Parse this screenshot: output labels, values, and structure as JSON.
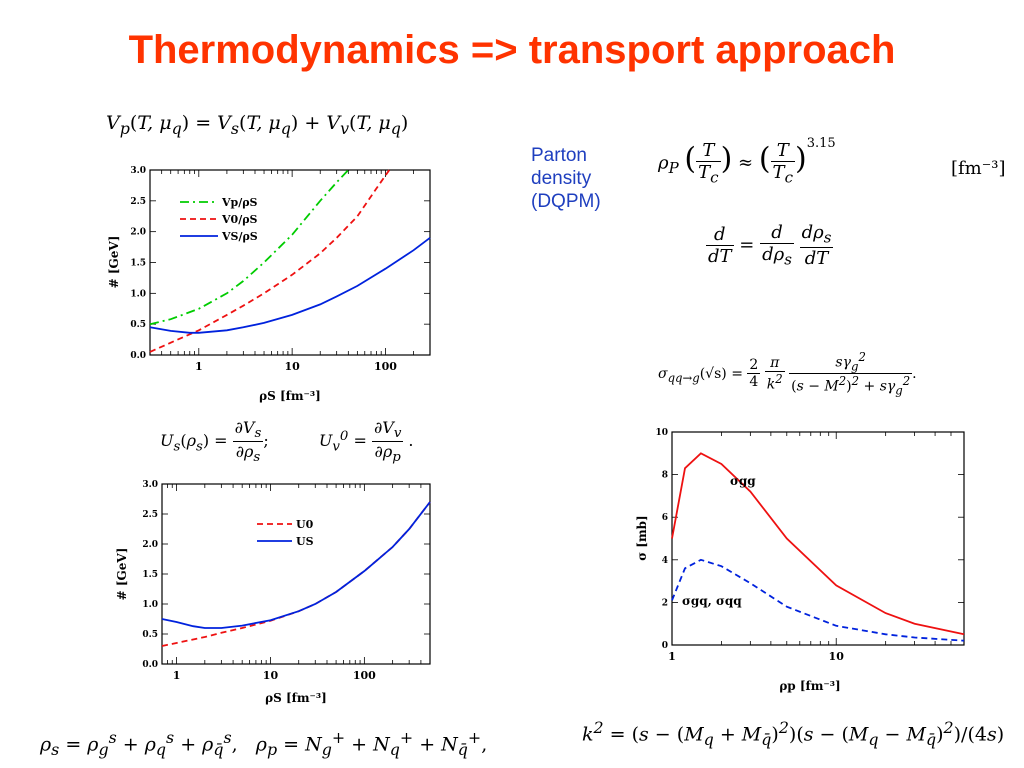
{
  "title": "Thermodynamics => transport approach",
  "parton_note": [
    "Parton",
    "density",
    "(DQPM)"
  ],
  "equations": {
    "potential_sum": "Vp(T, μq) = Vs(T, μq) + Vv(T, μq)",
    "density_power": "ρP (T/Tc) ≈ (T/Tc)^3.15",
    "density_unit": "[fm⁻³]",
    "chain_rule": "d/dT = d/dρs · dρs/dT",
    "cross_section": "σqq→g(√s) = (2/4)(π/k²) sγg² / ((s − M²)² + sγg²)",
    "potential_derivatives": "Us(ρs) = ∂Vs/∂ρs;   Uv0 = ∂Vv/∂ρp",
    "density_defs": "ρs = ρgs + ρqs + ρq̄s,   ρp = Ng+ + Nq+ + Nq̄+,",
    "k_squared": "k² = (s − (Mq + Mq̄)²)(s − (Mq − Mq̄)²)/(4s)"
  },
  "chart_data": [
    {
      "type": "line",
      "xlabel": "ρS [fm⁻³]",
      "ylabel": "# [GeV]",
      "xscale": "log",
      "xlim": [
        0.3,
        300
      ],
      "ylim": [
        0.0,
        3.0
      ],
      "x_ticks": [
        "1",
        "10",
        "100"
      ],
      "y_ticks": [
        "0.0",
        "0.5",
        "1.0",
        "1.5",
        "2.0",
        "2.5",
        "3.0"
      ],
      "legend": "top-left",
      "series": [
        {
          "name": "Vp/ρS",
          "color": "#00cc00",
          "dash": "dashdot",
          "x": [
            0.3,
            0.5,
            1,
            2,
            3,
            5,
            10,
            20,
            30,
            40
          ],
          "y": [
            0.5,
            0.58,
            0.75,
            1.0,
            1.2,
            1.5,
            1.95,
            2.5,
            2.8,
            3.0
          ]
        },
        {
          "name": "V0/ρS",
          "color": "#ee1111",
          "dash": "dash",
          "x": [
            0.3,
            0.5,
            1,
            2,
            3,
            5,
            10,
            20,
            30,
            50,
            80,
            110
          ],
          "y": [
            0.05,
            0.2,
            0.4,
            0.65,
            0.8,
            1.0,
            1.3,
            1.65,
            1.9,
            2.25,
            2.7,
            3.0
          ]
        },
        {
          "name": "VS/ρS",
          "color": "#0022dd",
          "dash": "solid",
          "x": [
            0.3,
            0.5,
            0.8,
            1,
            2,
            3,
            5,
            10,
            20,
            30,
            50,
            100,
            200,
            300
          ],
          "y": [
            0.45,
            0.39,
            0.36,
            0.36,
            0.4,
            0.45,
            0.52,
            0.65,
            0.82,
            0.95,
            1.12,
            1.4,
            1.7,
            1.9
          ]
        }
      ]
    },
    {
      "type": "line",
      "xlabel": "ρS [fm⁻³]",
      "ylabel": "# [GeV]",
      "xscale": "log",
      "xlim": [
        0.7,
        500
      ],
      "ylim": [
        0.0,
        3.0
      ],
      "x_ticks": [
        "1",
        "10",
        "100"
      ],
      "y_ticks": [
        "0.0",
        "0.5",
        "1.0",
        "1.5",
        "2.0",
        "2.5",
        "3.0"
      ],
      "legend": "top-right",
      "series": [
        {
          "name": "U0",
          "color": "#ee1111",
          "dash": "dash",
          "x": [
            0.7,
            1,
            2,
            3,
            5,
            10,
            20,
            30,
            50,
            100,
            200,
            300,
            500
          ],
          "y": [
            0.3,
            0.35,
            0.45,
            0.52,
            0.6,
            0.72,
            0.88,
            1.0,
            1.2,
            1.55,
            1.95,
            2.25,
            2.7
          ]
        },
        {
          "name": "US",
          "color": "#0022dd",
          "dash": "solid",
          "x": [
            0.7,
            1,
            1.5,
            2,
            3,
            5,
            10,
            20,
            30,
            50,
            100,
            200,
            300,
            500
          ],
          "y": [
            0.75,
            0.7,
            0.63,
            0.6,
            0.6,
            0.64,
            0.73,
            0.88,
            1.0,
            1.2,
            1.55,
            1.95,
            2.25,
            2.7
          ]
        }
      ]
    },
    {
      "type": "line",
      "xlabel": "ρp [fm⁻³]",
      "ylabel": "σ [mb]",
      "xscale": "log",
      "xlim": [
        1,
        60
      ],
      "ylim": [
        0,
        10
      ],
      "x_ticks": [
        "1",
        "10"
      ],
      "y_ticks": [
        "0",
        "2",
        "4",
        "6",
        "8",
        "10"
      ],
      "series": [
        {
          "name": "σgg",
          "color": "#ee1111",
          "dash": "solid",
          "x": [
            1,
            1.2,
            1.5,
            2,
            3,
            5,
            10,
            20,
            30,
            60
          ],
          "y": [
            5.0,
            8.3,
            9.0,
            8.5,
            7.2,
            5.0,
            2.8,
            1.5,
            1.0,
            0.5
          ]
        },
        {
          "name": "σgq, σqq",
          "color": "#0022dd",
          "dash": "dash",
          "x": [
            1,
            1.2,
            1.5,
            2,
            3,
            5,
            10,
            20,
            30,
            60
          ],
          "y": [
            2.1,
            3.6,
            4.0,
            3.7,
            2.9,
            1.8,
            0.9,
            0.5,
            0.35,
            0.2
          ]
        }
      ]
    }
  ]
}
